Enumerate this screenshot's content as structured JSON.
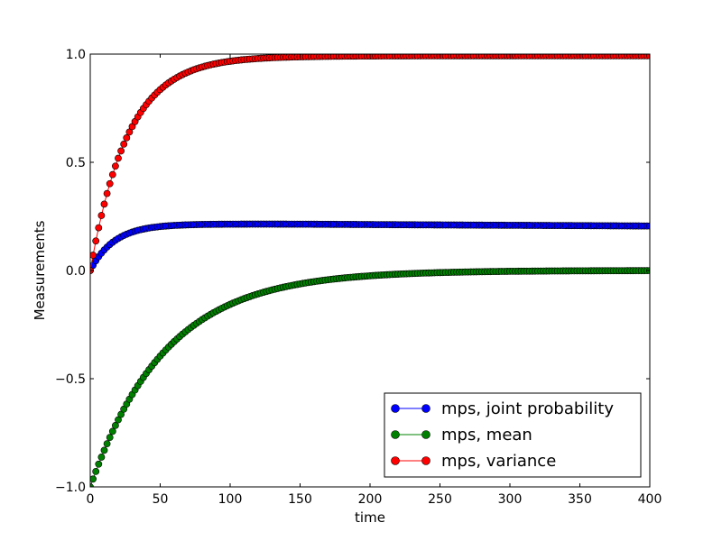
{
  "chart_data": {
    "type": "line",
    "title": "",
    "xlabel": "time",
    "ylabel": "Measurements",
    "xlim": [
      0,
      400
    ],
    "ylim": [
      -1.0,
      1.0
    ],
    "x_ticks": [
      0,
      50,
      100,
      150,
      200,
      250,
      300,
      350,
      400
    ],
    "y_ticks": [
      -1.0,
      -0.5,
      0.0,
      0.5,
      1.0
    ],
    "x_tick_labels": [
      "0",
      "50",
      "100",
      "150",
      "200",
      "250",
      "300",
      "350",
      "400"
    ],
    "y_tick_labels": [
      "−1.0",
      "−0.5",
      "0.0",
      "0.5",
      "1.0"
    ],
    "grid": false,
    "legend_position": "bottom-right",
    "x_start": 0,
    "x_step": 2,
    "series": [
      {
        "name": "mps, joint probability",
        "color": "#0000ff",
        "values": [
          0.0,
          0.0237,
          0.0448,
          0.0636,
          0.0803,
          0.0951,
          0.1083,
          0.1201,
          0.1305,
          0.1398,
          0.148,
          0.1554,
          0.1619,
          0.1678,
          0.1729,
          0.1775,
          0.1816,
          0.1853,
          0.1885,
          0.1914,
          0.194,
          0.1963,
          0.1983,
          0.2001,
          0.2017,
          0.2031,
          0.2044,
          0.2055,
          0.2065,
          0.2074,
          0.2082,
          0.2089,
          0.2095,
          0.2101,
          0.2106,
          0.2111,
          0.2115,
          0.2118,
          0.2122,
          0.2124,
          0.2127,
          0.2129,
          0.2131,
          0.2133,
          0.2134,
          0.2136,
          0.2137,
          0.2138,
          0.2139,
          0.214,
          0.214,
          0.2141,
          0.2142,
          0.2142,
          0.2143,
          0.2143,
          0.2143,
          0.2144,
          0.2144,
          0.2144,
          0.2144,
          0.2144,
          0.2144,
          0.2144,
          0.2144,
          0.2144,
          0.2144,
          0.2143,
          0.2143,
          0.2143,
          0.2143,
          0.2142,
          0.2142,
          0.2142,
          0.2141,
          0.2141,
          0.2141,
          0.214,
          0.214,
          0.2139,
          0.2138,
          0.2137,
          0.2136,
          0.2136,
          0.2135,
          0.2134,
          0.2133,
          0.2133,
          0.2132,
          0.2131,
          0.2131,
          0.213,
          0.2129,
          0.2128,
          0.2127,
          0.2127,
          0.2126,
          0.2125,
          0.2124,
          0.2124,
          0.2123,
          0.2122,
          0.2121,
          0.2121,
          0.212,
          0.2119,
          0.2119,
          0.2118,
          0.2117,
          0.2117,
          0.2116,
          0.2115,
          0.2115,
          0.2114,
          0.2113,
          0.2113,
          0.2112,
          0.2111,
          0.2111,
          0.211,
          0.2109,
          0.2109,
          0.2108,
          0.2107,
          0.2107,
          0.2106,
          0.2105,
          0.2105,
          0.2104,
          0.2103,
          0.2103,
          0.2102,
          0.2101,
          0.2101,
          0.21,
          0.2099,
          0.2099,
          0.2098,
          0.2097,
          0.2097,
          0.2096,
          0.2095,
          0.2095,
          0.2094,
          0.2093,
          0.2093,
          0.2092,
          0.2091,
          0.2091,
          0.209,
          0.2089,
          0.2089,
          0.2088,
          0.2087,
          0.2087,
          0.2086,
          0.2085,
          0.2085,
          0.2084,
          0.2083,
          0.2083,
          0.2082,
          0.2081,
          0.2081,
          0.208,
          0.2079,
          0.2079,
          0.2078,
          0.2077,
          0.2077,
          0.2076,
          0.2075,
          0.2075,
          0.2074,
          0.2073,
          0.2073,
          0.2072,
          0.2071,
          0.2071,
          0.207,
          0.2069,
          0.2069,
          0.2068,
          0.2067,
          0.2067,
          0.2066,
          0.2065,
          0.2065,
          0.2064,
          0.2063,
          0.2063,
          0.2062,
          0.2061,
          0.2061,
          0.206,
          0.2059,
          0.2059,
          0.2058,
          0.2057,
          0.2057,
          0.2056,
          0.2055,
          0.2055,
          0.2054,
          0.2053,
          0.2053,
          0.2052
        ]
      },
      {
        "name": "mps, mean",
        "color": "#008000",
        "values": [
          -1.0,
          -0.9637,
          -0.9287,
          -0.8949,
          -0.8623,
          -0.8309,
          -0.8006,
          -0.7714,
          -0.7433,
          -0.7162,
          -0.6901,
          -0.6649,
          -0.6407,
          -0.6173,
          -0.5948,
          -0.5731,
          -0.5522,
          -0.5321,
          -0.5127,
          -0.494,
          -0.476,
          -0.4586,
          -0.4419,
          -0.4258,
          -0.4103,
          -0.3954,
          -0.381,
          -0.3671,
          -0.3537,
          -0.3409,
          -0.3284,
          -0.3165,
          -0.305,
          -0.2939,
          -0.2832,
          -0.2729,
          -0.263,
          -0.2534,
          -0.2442,
          -0.2353,
          -0.2267,
          -0.2185,
          -0.2105,
          -0.2029,
          -0.1955,
          -0.1884,
          -0.1815,
          -0.1749,
          -0.1686,
          -0.1624,
          -0.1565,
          -0.1508,
          -0.1453,
          -0.14,
          -0.1349,
          -0.13,
          -0.1253,
          -0.1207,
          -0.1163,
          -0.1121,
          -0.108,
          -0.1041,
          -0.1003,
          -0.0966,
          -0.0931,
          -0.0897,
          -0.0865,
          -0.0833,
          -0.0803,
          -0.0774,
          -0.0745,
          -0.0718,
          -0.0692,
          -0.0667,
          -0.0643,
          -0.0619,
          -0.0597,
          -0.0575,
          -0.0554,
          -0.0534,
          -0.0514,
          -0.0496,
          -0.0478,
          -0.046,
          -0.0443,
          -0.0427,
          -0.0412,
          -0.0397,
          -0.0382,
          -0.0368,
          -0.0355,
          -0.0342,
          -0.0329,
          -0.0317,
          -0.0306,
          -0.0295,
          -0.0284,
          -0.0274,
          -0.0264,
          -0.0254,
          -0.0245,
          -0.0236,
          -0.0227,
          -0.0219,
          -0.0211,
          -0.0203,
          -0.0196,
          -0.0189,
          -0.0182,
          -0.0175,
          -0.0169,
          -0.0163,
          -0.0157,
          -0.0151,
          -0.0146,
          -0.014,
          -0.0135,
          -0.013,
          -0.0125,
          -0.0121,
          -0.0116,
          -0.0112,
          -0.0108,
          -0.0104,
          -0.01,
          -0.0097,
          -0.0093,
          -0.009,
          -0.0087,
          -0.0083,
          -0.008,
          -0.0077,
          -0.0075,
          -0.0072,
          -0.0069,
          -0.0067,
          -0.0064,
          -0.0062,
          -0.006,
          -0.0058,
          -0.0056,
          -0.0054,
          -0.0052,
          -0.005,
          -0.0048,
          -0.0046,
          -0.0045,
          -0.0043,
          -0.0041,
          -0.004,
          -0.0038,
          -0.0037,
          -0.0036,
          -0.0034,
          -0.0033,
          -0.0032,
          -0.0031,
          -0.003,
          -0.0029,
          -0.0028,
          -0.0027,
          -0.0026,
          -0.0025,
          -0.0024,
          -0.0023,
          -0.0022,
          -0.0021,
          -0.0021,
          -0.002,
          -0.0019,
          -0.0019,
          -0.0018,
          -0.0017,
          -0.0017,
          -0.0016,
          -0.0015,
          -0.0015,
          -0.0014,
          -0.0014,
          -0.0013,
          -0.0013,
          -0.0012,
          -0.0012,
          -0.0012,
          -0.0011,
          -0.0011,
          -0.001,
          -0.001,
          -0.001,
          -0.0009,
          -0.0009,
          -0.0009,
          -0.0008,
          -0.0008,
          -0.0008,
          -0.0007,
          -0.0007,
          -0.0007,
          -0.0007,
          -0.0006,
          -0.0006,
          -0.0006,
          -0.0006,
          -0.0006,
          -0.0005
        ]
      },
      {
        "name": "mps, variance",
        "color": "#ff0000",
        "values": [
          0.0,
          0.0708,
          0.1365,
          0.1975,
          0.2542,
          0.3068,
          0.3557,
          0.4011,
          0.4432,
          0.4823,
          0.5187,
          0.5524,
          0.5838,
          0.6129,
          0.6399,
          0.665,
          0.6883,
          0.71,
          0.7301,
          0.7488,
          0.7661,
          0.7822,
          0.7972,
          0.811,
          0.8239,
          0.8359,
          0.847,
          0.8573,
          0.8669,
          0.8758,
          0.884,
          0.8917,
          0.8988,
          0.9054,
          0.9116,
          0.9173,
          0.9226,
          0.9275,
          0.9321,
          0.9363,
          0.9402,
          0.9439,
          0.9473,
          0.9504,
          0.9533,
          0.956,
          0.9585,
          0.9609,
          0.963,
          0.965,
          0.9669,
          0.9686,
          0.9702,
          0.9717,
          0.9731,
          0.9744,
          0.9756,
          0.9767,
          0.9777,
          0.9787,
          0.9796,
          0.9804,
          0.9812,
          0.9819,
          0.9826,
          0.9832,
          0.9838,
          0.9843,
          0.9848,
          0.9853,
          0.9857,
          0.9861,
          0.9865,
          0.9869,
          0.9872,
          0.9875,
          0.9878,
          0.9881,
          0.9883,
          0.9886,
          0.9888,
          0.989,
          0.9892,
          0.9894,
          0.9896,
          0.9897,
          0.9899,
          0.99,
          0.9902,
          0.9903,
          0.9904,
          0.9905,
          0.9906,
          0.9907,
          0.9908,
          0.9909,
          0.991,
          0.9911,
          0.9912,
          0.9912,
          0.9913,
          0.9914,
          0.9914,
          0.9915,
          0.9915,
          0.9916,
          0.9916,
          0.9917,
          0.9917,
          0.9918,
          0.9918,
          0.9918,
          0.9919,
          0.9919,
          0.9919,
          0.992,
          0.992,
          0.992,
          0.992,
          0.9921,
          0.9921,
          0.9921,
          0.9921,
          0.9921,
          0.9922,
          0.9922,
          0.9922,
          0.9922,
          0.9922,
          0.9922,
          0.9923,
          0.9923,
          0.9923,
          0.9923,
          0.9923,
          0.9923,
          0.9923,
          0.9923,
          0.9924,
          0.9924,
          0.9924,
          0.9924,
          0.9924,
          0.9924,
          0.9924,
          0.9924,
          0.9924,
          0.9924,
          0.9924,
          0.9924,
          0.9924,
          0.9924,
          0.9924,
          0.9925,
          0.9925,
          0.9925,
          0.9925,
          0.9925,
          0.9925,
          0.9925,
          0.9925,
          0.9925,
          0.9925,
          0.9925,
          0.9925,
          0.9925,
          0.9925,
          0.9925,
          0.9925,
          0.9925,
          0.9925,
          0.9925,
          0.9925,
          0.9925,
          0.9925,
          0.9925,
          0.9925,
          0.9925,
          0.9925,
          0.9925,
          0.9925,
          0.9925,
          0.9925,
          0.9925,
          0.9925,
          0.9925,
          0.9925,
          0.9925,
          0.9925,
          0.9925,
          0.9925,
          0.9925,
          0.9925,
          0.9925,
          0.9925,
          0.9925,
          0.9925,
          0.9925,
          0.9925,
          0.9925,
          0.9925,
          0.9925,
          0.9925,
          0.9925,
          0.9925,
          0.9925,
          0.9925
        ]
      }
    ]
  }
}
